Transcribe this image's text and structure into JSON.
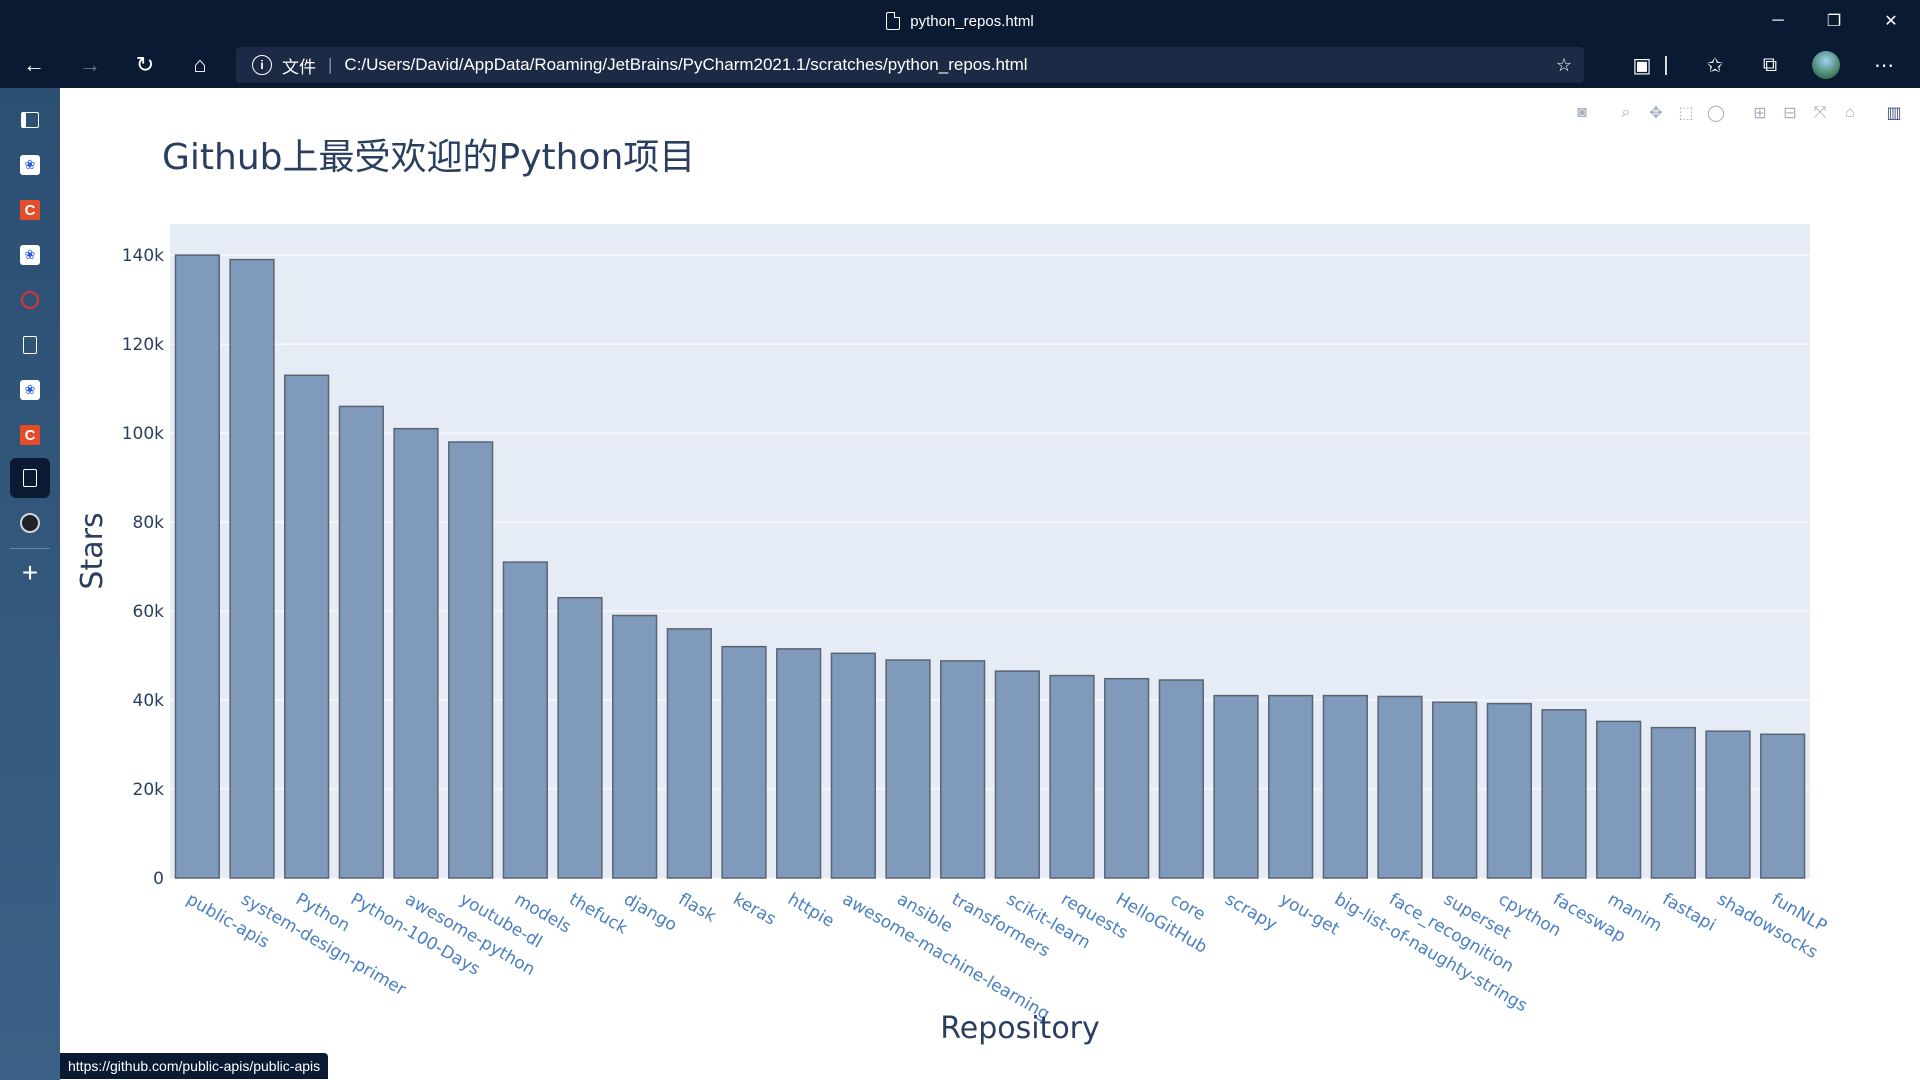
{
  "window": {
    "tab_title": "python_repos.html",
    "minimize": "─",
    "restore": "❐",
    "close": "✕"
  },
  "navbar": {
    "back": "←",
    "forward": "→",
    "reload": "↻",
    "home": "⌂",
    "address_label": "文件",
    "url": "C:/Users/David/AppData/Roaming/JetBrains/PyCharm2021.1/scratches/python_repos.html"
  },
  "sidebar": {
    "items": [
      {
        "icon": "tabs-icon"
      },
      {
        "icon": "baidu-icon"
      },
      {
        "icon": "csdn-icon",
        "text": "C"
      },
      {
        "icon": "baidu-icon"
      },
      {
        "icon": "blocked-icon"
      },
      {
        "icon": "document-icon"
      },
      {
        "icon": "baidu-icon"
      },
      {
        "icon": "csdn-icon",
        "text": "C"
      },
      {
        "icon": "document-icon"
      },
      {
        "icon": "github-icon"
      }
    ],
    "add": "+"
  },
  "status_url": "https://github.com/public-apis/public-apis",
  "colors": {
    "bar_fill": "#7f9abb",
    "bar_stroke": "#5a6474",
    "plot_bg": "#e5ecf6",
    "title": "#2a3f5f",
    "tick_x": "#4a7fc1",
    "axis_text": "#2a3f5f"
  },
  "chart_data": {
    "type": "bar",
    "title": "Github上最受欢迎的Python项目",
    "xlabel": "Repository",
    "ylabel": "Stars",
    "ylim": [
      0,
      147000
    ],
    "yticks": [
      0,
      20000,
      40000,
      60000,
      80000,
      100000,
      120000,
      140000
    ],
    "yticklabels": [
      "0",
      "20k",
      "40k",
      "60k",
      "80k",
      "100k",
      "120k",
      "140k"
    ],
    "grid": true,
    "categories": [
      "public-apis",
      "system-design-primer",
      "Python",
      "Python-100-Days",
      "awesome-python",
      "youtube-dl",
      "models",
      "thefuck",
      "django",
      "flask",
      "keras",
      "httpie",
      "awesome-machine-learning",
      "ansible",
      "transformers",
      "scikit-learn",
      "requests",
      "HelloGitHub",
      "core",
      "scrapy",
      "you-get",
      "big-list-of-naughty-strings",
      "face_recognition",
      "superset",
      "cpython",
      "faceswap",
      "manim",
      "fastapi",
      "shadowsocks",
      "funNLP"
    ],
    "values": [
      140000,
      139000,
      113000,
      106000,
      101000,
      98000,
      71000,
      63000,
      59000,
      56000,
      52000,
      51500,
      50500,
      49000,
      48800,
      46500,
      45500,
      44800,
      44500,
      41000,
      41000,
      41000,
      40800,
      39500,
      39200,
      37800,
      35200,
      33800,
      33000,
      32300
    ]
  },
  "modebar": [
    "camera-icon",
    "zoom-icon",
    "pan-icon",
    "box-select-icon",
    "lasso-icon",
    "zoom-in-icon",
    "zoom-out-icon",
    "autoscale-icon",
    "reset-axes-icon",
    "plotly-logo-icon"
  ]
}
